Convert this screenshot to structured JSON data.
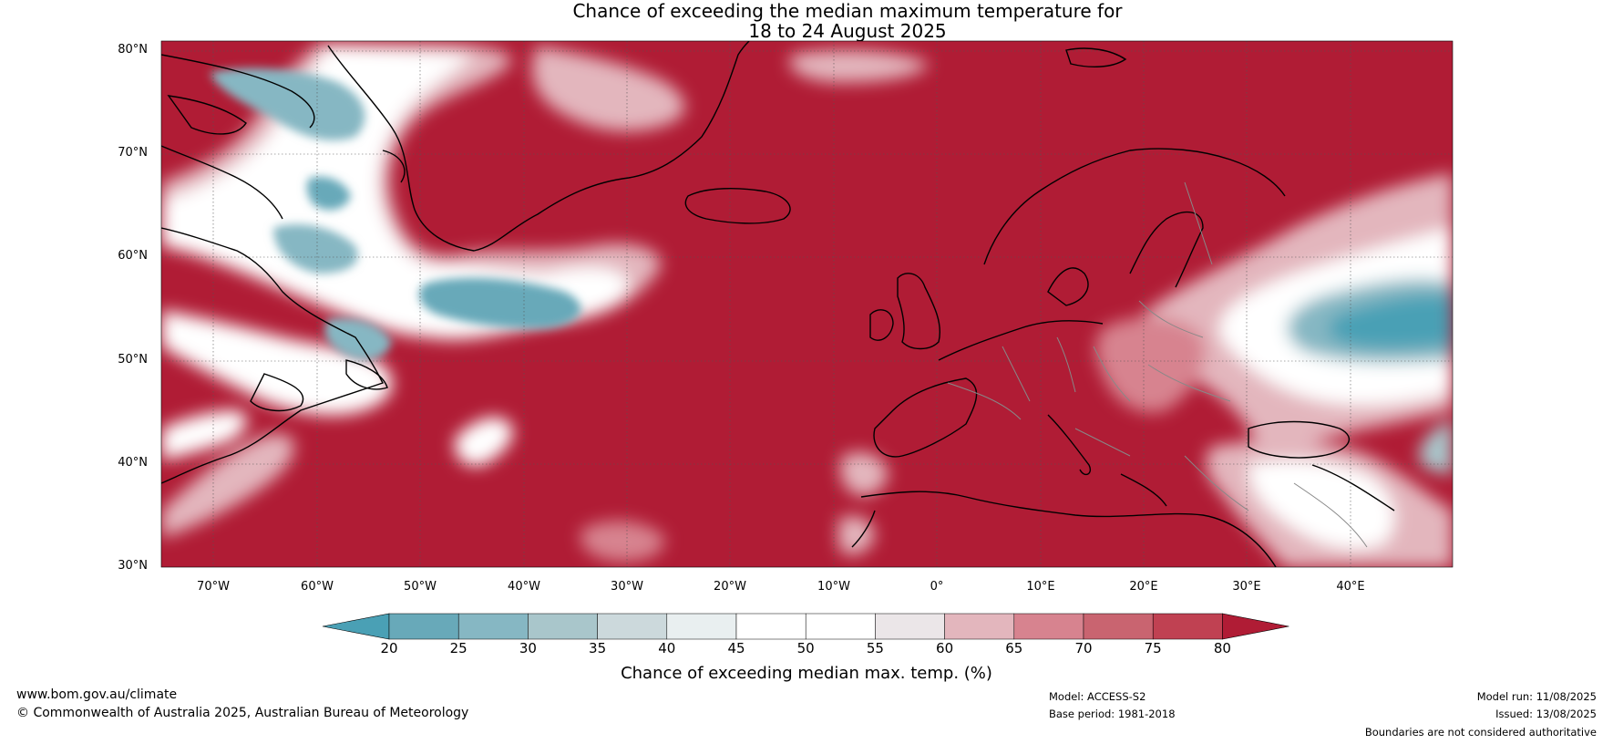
{
  "title_line1": "Chance of exceeding the median maximum temperature for",
  "title_line2": "18 to 24 August 2025",
  "lat_labels": [
    "80°N",
    "70°N",
    "60°N",
    "50°N",
    "40°N",
    "30°N"
  ],
  "lon_labels": [
    "70°W",
    "60°W",
    "50°W",
    "40°W",
    "30°W",
    "20°W",
    "10°W",
    "0°",
    "10°E",
    "20°E",
    "30°E",
    "40°E"
  ],
  "colorbar": {
    "ticks": [
      "20",
      "25",
      "30",
      "35",
      "40",
      "45",
      "50",
      "55",
      "60",
      "65",
      "70",
      "75",
      "80"
    ],
    "label": "Chance of exceeding median max. temp. (%)",
    "colors": [
      "#4aa0b5",
      "#68a9b9",
      "#86b7c3",
      "#a9c6cb",
      "#ccd9dc",
      "#e9eff0",
      "#ffffff",
      "#ffffff",
      "#ebe6e8",
      "#e3b6bd",
      "#d7838f",
      "#c96470",
      "#c04152",
      "#b01c35"
    ]
  },
  "map": {
    "dominant_color": "#b01c35",
    "coastline_color": "#000000",
    "border_color": "#888888",
    "grid_color": "#555555"
  },
  "footer": {
    "url": "www.bom.gov.au/climate",
    "copyright": "© Commonwealth of Australia 2025, Australian Bureau of Meteorology",
    "model": "Model: ACCESS-S2",
    "base_period": "Base period: 1981-2018",
    "model_run": "Model run: 11/08/2025",
    "issued": "Issued: 13/08/2025",
    "disclaimer": "Boundaries are not considered authoritative"
  }
}
